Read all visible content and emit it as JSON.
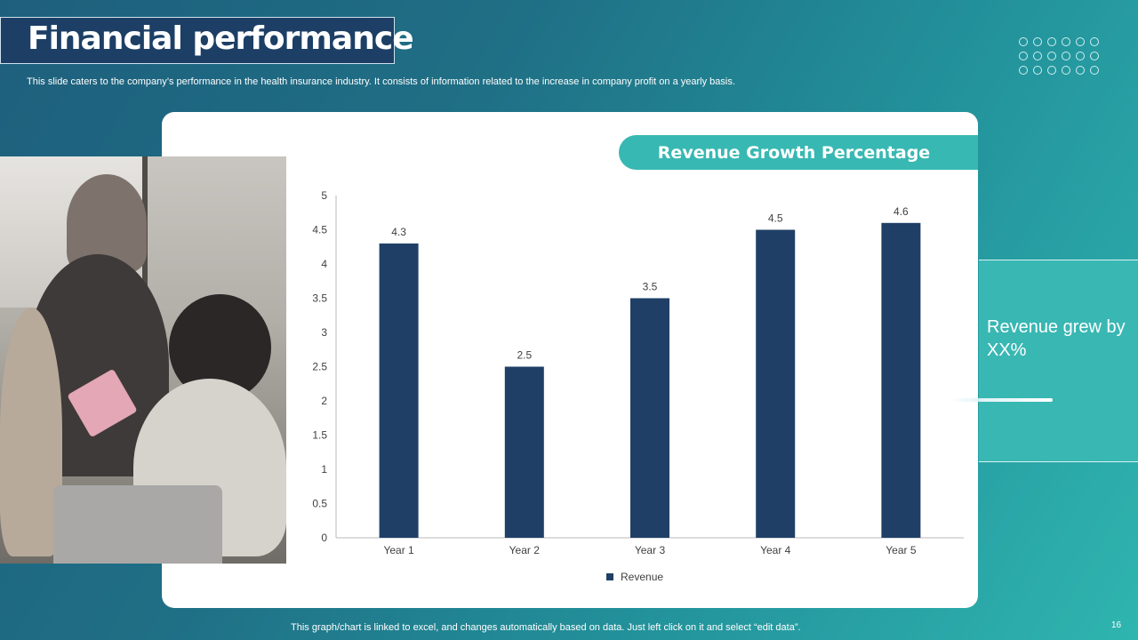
{
  "slide": {
    "title": "Financial performance",
    "subtitle": "This slide caters to the company’s performance in the health insurance industry. It consists of information related to the increase in company profit on a yearly  basis.",
    "chart_heading": "Revenue Growth Percentage",
    "side_note": "Revenue grew by XX%",
    "footer_note": "This graph/chart is linked to excel,  and changes automatically based on data. Just left click on it and select “edit data”.",
    "page_number": "16"
  },
  "colors": {
    "bar": "#1f3f66",
    "accent": "#38b8b3",
    "title_bg": "#1d3f66"
  },
  "chart_data": {
    "type": "bar",
    "categories": [
      "Year 1",
      "Year 2",
      "Year 3",
      "Year 4",
      "Year 5"
    ],
    "series": [
      {
        "name": "Revenue",
        "values": [
          4.3,
          2.5,
          3.5,
          4.5,
          4.6
        ]
      }
    ],
    "ylim": [
      0,
      5
    ],
    "yticks": [
      "0",
      "0.5",
      "1",
      "1.5",
      "2",
      "2.5",
      "3",
      "3.5",
      "4",
      "4.5",
      "5"
    ],
    "data_labels": [
      "4.3",
      "2.5",
      "3.5",
      "4.5",
      "4.6"
    ],
    "legend": "bottom",
    "grid": false
  }
}
